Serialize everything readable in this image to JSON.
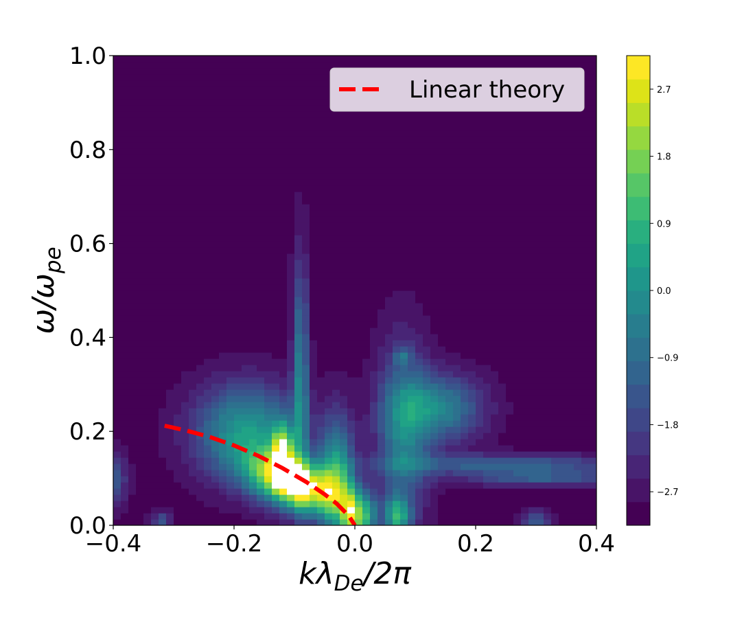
{
  "chart_data": {
    "type": "heatmap",
    "xlabel": "kλDe/2π",
    "ylabel": "ω/ωpe",
    "xlim": [
      -0.4,
      0.4
    ],
    "ylim": [
      0.0,
      1.0
    ],
    "x_ticks": [
      -0.4,
      -0.2,
      0.0,
      0.2,
      0.4
    ],
    "x_tick_labels": [
      "−0.4",
      "−0.2",
      "0.0",
      "0.2",
      "0.4"
    ],
    "y_ticks": [
      0.0,
      0.2,
      0.4,
      0.6,
      0.8,
      1.0
    ],
    "y_tick_labels": [
      "0.0",
      "0.2",
      "0.4",
      "0.6",
      "0.8",
      "1.0"
    ],
    "grid": false,
    "colormap": "viridis",
    "colorbar": {
      "range": [
        -3.15,
        3.15
      ],
      "ticks": [
        -2.7,
        -1.8,
        -0.9,
        0.0,
        0.9,
        1.8,
        2.7
      ],
      "tick_labels": [
        "−2.7",
        "−1.8",
        "−0.9",
        "0.0",
        "0.9",
        "1.8",
        "2.7"
      ],
      "levels": 20,
      "colors": [
        "#440154",
        "#481467",
        "#482576",
        "#453781",
        "#3f4788",
        "#39558c",
        "#32648e",
        "#2d718e",
        "#287d8e",
        "#238a8d",
        "#1f968b",
        "#20a386",
        "#29af7f",
        "#3dbc74",
        "#56c667",
        "#75d054",
        "#95d840",
        "#bade28",
        "#dde318",
        "#fde725"
      ]
    },
    "background_value": -3.0,
    "features": [
      {
        "x": -0.1,
        "y": 0.09,
        "sx": 0.055,
        "sy": 0.035,
        "amp": 6.8,
        "angle_deg": -35
      },
      {
        "x": -0.12,
        "y": 0.16,
        "sx": 0.012,
        "sy": 0.04,
        "amp": 4.0,
        "angle_deg": 0
      },
      {
        "x": -0.09,
        "y": 0.32,
        "sx": 0.009,
        "sy": 0.17,
        "amp": 2.6,
        "angle_deg": 0
      },
      {
        "x": -0.18,
        "y": 0.2,
        "sx": 0.06,
        "sy": 0.07,
        "amp": 3.2,
        "angle_deg": 0
      },
      {
        "x": -0.03,
        "y": 0.1,
        "sx": 0.02,
        "sy": 0.09,
        "amp": 3.4,
        "angle_deg": 0
      },
      {
        "x": -0.005,
        "y": 0.02,
        "sx": 0.012,
        "sy": 0.04,
        "amp": 4.0,
        "angle_deg": 0
      },
      {
        "x": 0.02,
        "y": 0.02,
        "sx": 0.012,
        "sy": 0.035,
        "amp": 3.0,
        "angle_deg": 0
      },
      {
        "x": 0.07,
        "y": 0.02,
        "sx": 0.015,
        "sy": 0.03,
        "amp": 3.2,
        "angle_deg": 0
      },
      {
        "x": 0.08,
        "y": 0.2,
        "sx": 0.03,
        "sy": 0.13,
        "amp": 2.4,
        "angle_deg": 0
      },
      {
        "x": 0.14,
        "y": 0.25,
        "sx": 0.05,
        "sy": 0.05,
        "amp": 2.6,
        "angle_deg": 0
      },
      {
        "x": 0.25,
        "y": 0.13,
        "sx": 0.14,
        "sy": 0.015,
        "amp": 1.9,
        "angle_deg": 0
      },
      {
        "x": 0.31,
        "y": 0.1,
        "sx": 0.09,
        "sy": 0.012,
        "amp": 1.6,
        "angle_deg": 0
      },
      {
        "x": 0.3,
        "y": 0.01,
        "sx": 0.015,
        "sy": 0.015,
        "amp": 1.8,
        "angle_deg": 0
      },
      {
        "x": -0.4,
        "y": 0.1,
        "sx": 0.015,
        "sy": 0.04,
        "amp": 1.8,
        "angle_deg": 0
      },
      {
        "x": -0.32,
        "y": 0.01,
        "sx": 0.012,
        "sy": 0.015,
        "amp": 1.5,
        "angle_deg": 0
      },
      {
        "x": 0.08,
        "y": 0.36,
        "sx": 0.01,
        "sy": 0.012,
        "amp": 1.4,
        "angle_deg": 0
      }
    ],
    "series": [
      {
        "name": "Linear theory",
        "color": "#ff0000",
        "style": "dashed",
        "x": [
          -0.315,
          -0.28,
          -0.24,
          -0.2,
          -0.16,
          -0.12,
          -0.08,
          -0.05,
          -0.03,
          -0.01,
          0.0
        ],
        "y": [
          0.212,
          0.202,
          0.188,
          0.17,
          0.148,
          0.122,
          0.092,
          0.066,
          0.046,
          0.02,
          0.0
        ]
      }
    ],
    "legend": {
      "position": "top-right"
    }
  }
}
